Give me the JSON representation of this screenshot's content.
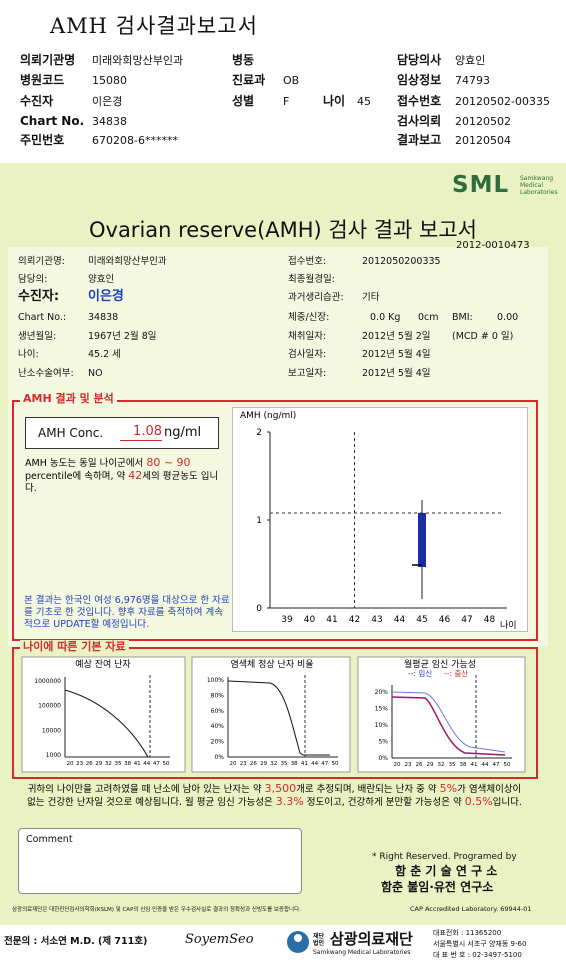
{
  "header": {
    "title": "AMH 검사결과보고서",
    "left": [
      {
        "label": "의뢰기관명",
        "value": "미래와희망산부인과"
      },
      {
        "label": "병원코드",
        "value": "15080"
      },
      {
        "label": "수진자",
        "value": "이은경"
      },
      {
        "label": "Chart No.",
        "value": "34838"
      },
      {
        "label": "주민번호",
        "value": "670208-6******"
      }
    ],
    "middle": [
      {
        "label": "병동"
      },
      {
        "label": "진료과",
        "value": "OB"
      },
      {
        "label": "성별",
        "value": "F"
      }
    ],
    "age": {
      "label": "나이",
      "value": "45"
    },
    "right": [
      {
        "label": "담당의사",
        "value": "양효인"
      },
      {
        "label": "임상정보",
        "value": "74793"
      },
      {
        "label": "접수번호",
        "value": "20120502-00335"
      },
      {
        "label": "검사의뢰",
        "value": "20120502"
      },
      {
        "label": "결과보고",
        "value": "20120504"
      }
    ]
  },
  "report": {
    "logo": "SML",
    "logo_sub": [
      "Samkwang",
      "Medical",
      "Laboratories"
    ],
    "title": "Ovarian reserve(AMH) 검사 결과 보고서",
    "number": "2012-0010473",
    "left": [
      {
        "label": "의뢰기관명:",
        "value": "미래와희망산부인과"
      },
      {
        "label": "담당의:",
        "value": "양효인"
      },
      {
        "label": "수진자:",
        "value": "이은경"
      },
      {
        "label": "Chart No.:",
        "value": "34838"
      },
      {
        "label": "생년월일:",
        "value": "1967년 2월 8일"
      },
      {
        "label": "나이:",
        "value": "45.2 세"
      },
      {
        "label": "난소수술여부:",
        "value": "NO"
      }
    ],
    "right": [
      {
        "label": "접수번호:",
        "value": "2012050200335"
      },
      {
        "label": "최종월경일:"
      },
      {
        "label": "과거생리습관:",
        "value": "기타"
      },
      {
        "label": "체중/신장:",
        "value": "0.0 Kg",
        "extra": [
          "0cm",
          "BMI:",
          "0.00"
        ]
      },
      {
        "label": "채취일자:",
        "value": "2012년 5월 2일",
        "extra": [
          "(MCD # 0 일)"
        ]
      },
      {
        "label": "검사일자:",
        "value": "2012년 5월 4일"
      },
      {
        "label": "보고일자:",
        "value": "2012년 5월 4일"
      }
    ]
  },
  "amh": {
    "section_title": "AMH 결과 및 분석",
    "conc_label": "AMH Conc.",
    "conc_value": "1.08",
    "conc_unit": "ng/ml",
    "note": [
      "AMH 농도는 동일 나이군에서 ",
      "80 ~ 90",
      " percentile에 속하며, 약 ",
      "42",
      "세의 평균농도 입니다."
    ],
    "disclaimer": "본 결과는 한국인 여성 6,976명을 대상으로 한 자료를 기초로 한 것입니다. 향후 자료를 축적하여 계속적으로 UPDATE할 예정입니다.",
    "chart": {
      "y_label": "AMH (ng/ml)",
      "yticks": [
        2,
        1,
        0
      ],
      "xticks": [
        39,
        40,
        41,
        42,
        43,
        44,
        45,
        46,
        47,
        48
      ],
      "x_label": "나이"
    }
  },
  "age_section": {
    "title": "나이에 따른 기본 자료",
    "charts": [
      {
        "title": "예상 잔여 난자",
        "yticks": [
          "1000000",
          "100000",
          "10000",
          "1000"
        ],
        "xticks": [
          20,
          23,
          26,
          29,
          32,
          35,
          38,
          41,
          44,
          47,
          50
        ]
      },
      {
        "title": "염색체 정상 난자 비율",
        "yticks": [
          "100%",
          "80%",
          "60%",
          "40%",
          "20%",
          "0%"
        ],
        "xticks": [
          20,
          23,
          26,
          29,
          32,
          35,
          38,
          41,
          44,
          47,
          50
        ]
      },
      {
        "title": "월평균 임신 가능성",
        "legend": [
          "--: 임신",
          "--: 출산"
        ],
        "yticks": [
          "20%",
          "15%",
          "10%",
          "5%",
          "0%"
        ],
        "xticks": [
          20,
          23,
          26,
          29,
          32,
          35,
          38,
          41,
          44,
          47,
          50
        ]
      }
    ],
    "summary": [
      "귀하의 나이만을 고려하였을 때 난소에 남아 있는 난자는 약 ",
      "3,500",
      "개로 추정되며, 배란되는 난자 중 약 ",
      "5%",
      "가 염색체이상이 없는 건강한 난자일 것으로 예상됩니다. 월 평균 임신 가능성은 ",
      "3.3%",
      " 정도이고, 건강하게 분만할 가능성은 약 ",
      "0.5%",
      "입니다."
    ]
  },
  "comment": {
    "label": "Comment"
  },
  "credits": [
    "* Right Reserved. Programed by",
    "함 춘 기 술 연 구 소",
    "함춘 불임·유전 연구소"
  ],
  "footer": {
    "notice": "삼광의료재단은 대한진단검사의학회(KSLM) 및 CAP의 신임 인증을 받은 우수검사실로 결과의 정확성과 신빙도를 보증합니다.",
    "cap": "CAP Accredited Laboratory. 69944-01",
    "doctor": "전문의 : 서소연 M.D. (제 711호)",
    "signature": "SoyemSeo",
    "org_prefix": "재단법인",
    "org": "삼광의료재단",
    "org_en": "Samkwang Medical Laboratories",
    "contact": [
      "대표전화 : 11365200",
      "서울특별시 서초구 양재동 9-60",
      "대 표 번 호 : 02-3497-5100"
    ]
  }
}
